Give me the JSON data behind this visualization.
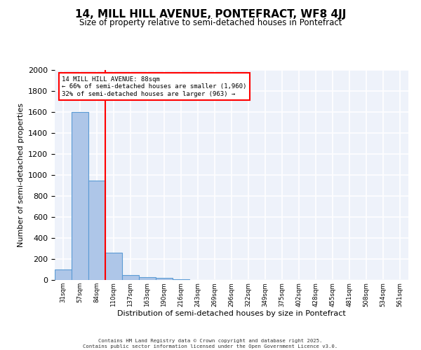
{
  "title": "14, MILL HILL AVENUE, PONTEFRACT, WF8 4JJ",
  "subtitle": "Size of property relative to semi-detached houses in Pontefract",
  "xlabel": "Distribution of semi-detached houses by size in Pontefract",
  "ylabel": "Number of semi-detached properties",
  "bin_labels": [
    "31sqm",
    "57sqm",
    "84sqm",
    "110sqm",
    "137sqm",
    "163sqm",
    "190sqm",
    "216sqm",
    "243sqm",
    "269sqm",
    "296sqm",
    "322sqm",
    "349sqm",
    "375sqm",
    "402sqm",
    "428sqm",
    "455sqm",
    "481sqm",
    "508sqm",
    "534sqm",
    "561sqm"
  ],
  "bar_heights": [
    100,
    1600,
    950,
    260,
    50,
    30,
    20,
    5,
    2,
    1,
    1,
    0,
    0,
    0,
    0,
    0,
    0,
    0,
    0,
    0,
    0
  ],
  "bar_color": "#aec6e8",
  "bar_edge_color": "#5b9bd5",
  "property_size": 88,
  "property_bin_index": 2,
  "red_line_label": "84sqm",
  "annotation_line1": "14 MILL HILL AVENUE: 88sqm",
  "annotation_line2": "← 66% of semi-detached houses are smaller (1,960)",
  "annotation_line3": "32% of semi-detached houses are larger (963) →",
  "ylim": [
    0,
    2000
  ],
  "yticks": [
    0,
    200,
    400,
    600,
    800,
    1000,
    1200,
    1400,
    1600,
    1800,
    2000
  ],
  "background_color": "#eef2fa",
  "grid_color": "#ffffff",
  "footer_line1": "Contains HM Land Registry data © Crown copyright and database right 2025.",
  "footer_line2": "Contains public sector information licensed under the Open Government Licence v3.0."
}
